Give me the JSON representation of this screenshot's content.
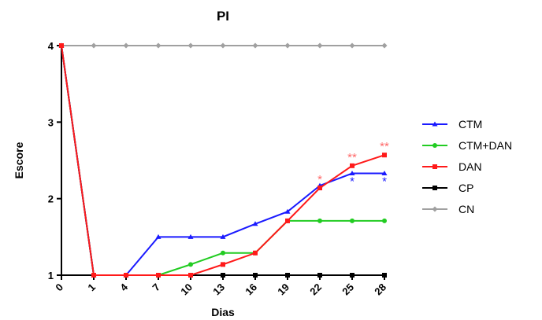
{
  "chart_data": {
    "type": "line",
    "title": "PI",
    "xlabel": "Dias",
    "ylabel": "Escore",
    "categories": [
      "0",
      "1",
      "4",
      "7",
      "10",
      "13",
      "16",
      "19",
      "22",
      "25",
      "28"
    ],
    "ylim": [
      1,
      4
    ],
    "yticks": [
      "1",
      "2",
      "3",
      "4"
    ],
    "grid": false,
    "legend_position": "right",
    "series": [
      {
        "name": "CTM",
        "color": "#1a1aff",
        "marker": "triangle",
        "values": [
          4,
          1,
          1,
          1.5,
          1.5,
          1.5,
          1.67,
          1.83,
          2.17,
          2.33,
          2.33
        ]
      },
      {
        "name": "CTM+DAN",
        "color": "#22cc22",
        "marker": "circle",
        "values": [
          4,
          1,
          1,
          1,
          1.14,
          1.29,
          1.29,
          1.71,
          1.71,
          1.71,
          1.71
        ]
      },
      {
        "name": "DAN",
        "color": "#ff1a1a",
        "marker": "square",
        "values": [
          4,
          1,
          1,
          1,
          1,
          1.14,
          1.29,
          1.71,
          2.14,
          2.43,
          2.57
        ]
      },
      {
        "name": "CP",
        "color": "#000000",
        "marker": "square",
        "values": [
          4,
          1,
          1,
          1,
          1,
          1,
          1,
          1,
          1,
          1,
          1
        ]
      },
      {
        "name": "CN",
        "color": "#a0a0a0",
        "marker": "diamond",
        "values": [
          4,
          4,
          4,
          4,
          4,
          4,
          4,
          4,
          4,
          4,
          4
        ]
      }
    ],
    "annotations": [
      {
        "text": "*",
        "series": "DAN",
        "category": "22",
        "side": "above",
        "color": "#ff6a6a"
      },
      {
        "text": "**",
        "series": "DAN",
        "category": "25",
        "side": "above",
        "color": "#ff6a6a"
      },
      {
        "text": "**",
        "series": "DAN",
        "category": "28",
        "side": "above",
        "color": "#ff6a6a"
      },
      {
        "text": "*",
        "series": "CTM",
        "category": "25",
        "side": "below",
        "color": "#1a1aff"
      },
      {
        "text": "*",
        "series": "CTM",
        "category": "28",
        "side": "below",
        "color": "#1a1aff"
      }
    ]
  }
}
